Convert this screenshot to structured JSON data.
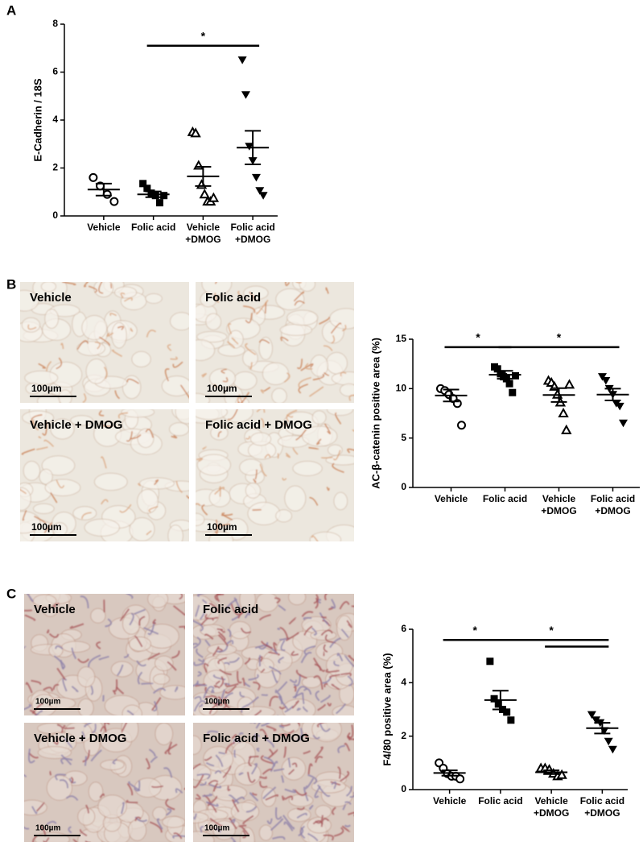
{
  "panels": [
    "A",
    "B",
    "C"
  ],
  "chart_data": [
    {
      "type": "dot",
      "ylabel": "E-Cadherin / 18S",
      "categories": [
        "Vehicle",
        "Folic acid",
        "Vehicle\n+DMOG",
        "Folic acid\n+DMOG"
      ],
      "markers": [
        "circle-open",
        "square",
        "triangle-open",
        "triangle-down"
      ],
      "color": "#000000",
      "points": [
        [
          1.6,
          1.25,
          0.9,
          0.6
        ],
        [
          1.35,
          1.15,
          0.95,
          0.85,
          0.55,
          0.85
        ],
        [
          3.5,
          3.45,
          2.1,
          1.3,
          0.9,
          0.6,
          0.6,
          0.75
        ],
        [
          6.5,
          5.05,
          2.9,
          2.3,
          1.6,
          1.05,
          0.85
        ]
      ],
      "means": [
        1.1,
        0.9,
        1.65,
        2.85
      ],
      "sems": [
        0.25,
        0.12,
        0.4,
        0.7
      ],
      "significance": [
        {
          "from": 1,
          "to": 3,
          "y": 7.1,
          "label": "*"
        }
      ],
      "ylim": [
        0,
        8
      ],
      "yticks": [
        0,
        2,
        4,
        6,
        8
      ]
    },
    {
      "type": "dot",
      "ylabel": "AC-β-catenin positive area (%)",
      "categories": [
        "Vehicle",
        "Folic acid",
        "Vehicle\n+DMOG",
        "Folic acid\n+DMOG"
      ],
      "markers": [
        "circle-open",
        "square",
        "triangle-open",
        "triangle-down"
      ],
      "color": "#000000",
      "points": [
        [
          10.0,
          9.8,
          9.4,
          9.0,
          8.5,
          6.3
        ],
        [
          12.2,
          12.0,
          11.5,
          11.2,
          11.0,
          10.5,
          9.6,
          11.3
        ],
        [
          10.8,
          10.6,
          10.2,
          9.4,
          8.6,
          7.5,
          5.8,
          10.4
        ],
        [
          11.2,
          10.8,
          10.0,
          9.4,
          8.5,
          8.2,
          6.5
        ]
      ],
      "means": [
        9.3,
        11.4,
        9.35,
        9.4
      ],
      "sems": [
        0.6,
        0.4,
        0.7,
        0.6
      ],
      "significance": [
        {
          "from": 0,
          "to": 1,
          "y": 14.2,
          "label": "*"
        },
        {
          "from": 1,
          "to": 3,
          "y": 14.2,
          "label": "*"
        }
      ],
      "ylim": [
        0,
        15
      ],
      "yticks": [
        0,
        5,
        10,
        15
      ]
    },
    {
      "type": "dot",
      "ylabel": "F4/80 positive area (%)",
      "categories": [
        "Vehicle",
        "Folic acid",
        "Vehicle\n+DMOG",
        "Folic acid\n+DMOG"
      ],
      "markers": [
        "circle-open",
        "square",
        "triangle-open",
        "triangle-down"
      ],
      "color": "#000000",
      "points": [
        [
          1.0,
          0.8,
          0.6,
          0.5,
          0.5,
          0.4
        ],
        [
          4.8,
          3.4,
          3.2,
          3.0,
          2.9,
          2.6
        ],
        [
          0.8,
          0.8,
          0.75,
          0.6,
          0.5,
          0.55
        ],
        [
          2.8,
          2.6,
          2.5,
          2.2,
          1.8,
          1.5
        ]
      ],
      "means": [
        0.62,
        3.35,
        0.65,
        2.3
      ],
      "sems": [
        0.1,
        0.35,
        0.07,
        0.2
      ],
      "significance": [
        {
          "from": 0,
          "to": 1,
          "y": 5.6,
          "label": "*"
        },
        {
          "from": 1,
          "to": 3,
          "y": 5.6,
          "label": "*"
        },
        {
          "from": 2,
          "to": 3,
          "y": 5.35
        }
      ],
      "ylim": [
        0,
        6
      ],
      "yticks": [
        0,
        2,
        4,
        6
      ]
    }
  ],
  "micrographs": {
    "B": [
      {
        "label": "Vehicle",
        "scale": "100µm"
      },
      {
        "label": "Folic acid",
        "scale": "100µm"
      },
      {
        "label": "Vehicle + DMOG",
        "scale": "100µm"
      },
      {
        "label": "Folic acid + DMOG",
        "scale": "100µm"
      }
    ],
    "C": [
      {
        "label": "Vehicle",
        "scale": "100µm"
      },
      {
        "label": "Folic acid",
        "scale": "100µm"
      },
      {
        "label": "Vehicle + DMOG",
        "scale": "100µm"
      },
      {
        "label": "Folic acid + DMOG",
        "scale": "100µm"
      }
    ]
  }
}
